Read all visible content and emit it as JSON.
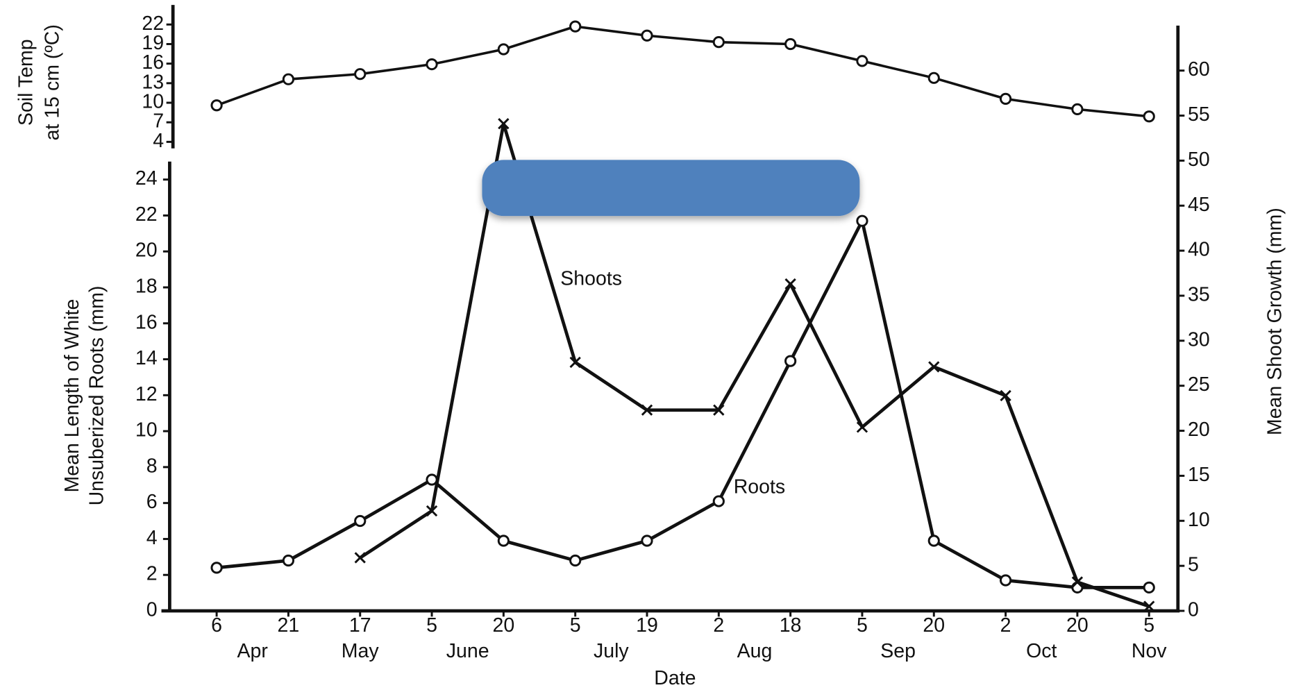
{
  "chart_data": [
    {
      "type": "line",
      "ylabel": [
        "Soil Temp",
        "at 15 cm (ºC)"
      ],
      "ylim": [
        3,
        25
      ],
      "yticks": [
        4,
        7,
        10,
        13,
        16,
        19,
        22
      ],
      "series": [
        {
          "color": "#111111",
          "marker": "circle",
          "values": [
            9.6,
            13.6,
            14.4,
            15.9,
            18.2,
            21.7,
            20.3,
            19.3,
            19.0,
            16.4,
            13.8,
            10.6,
            9.0,
            7.9
          ]
        }
      ]
    },
    {
      "type": "line",
      "xlabel": "Date",
      "ylabel": [
        "Mean Length of White",
        "Unsuberized Roots (mm)"
      ],
      "y2label": "Mean Shoot Growth (mm)",
      "categories": [
        "6",
        "21",
        "17",
        "5",
        "20",
        "5",
        "19",
        "2",
        "18",
        "5",
        "20",
        "2",
        "20",
        "5"
      ],
      "months": [
        "Apr",
        null,
        "May",
        "June",
        null,
        "July",
        null,
        "Aug",
        null,
        "Sep",
        null,
        "Oct",
        null,
        "Nov"
      ],
      "ylim": [
        0,
        25
      ],
      "yticks": [
        0,
        2,
        4,
        6,
        8,
        10,
        12,
        14,
        16,
        18,
        20,
        22,
        24
      ],
      "y2lim": [
        0,
        65
      ],
      "y2ticks": [
        0,
        5,
        10,
        15,
        20,
        25,
        30,
        35,
        40,
        45,
        50,
        55,
        60
      ],
      "series": [
        {
          "name": "Roots",
          "color": "#111111",
          "marker": "circle",
          "values": [
            2.4,
            2.8,
            5.0,
            7.3,
            3.9,
            2.8,
            3.9,
            6.1,
            13.9,
            21.7,
            3.9,
            1.7,
            1.3,
            1.3
          ]
        },
        {
          "name": "Shoots",
          "color": "#111111",
          "marker": "x",
          "axis": "y2",
          "values": [
            null,
            null,
            5.9,
            11.1,
            54.1,
            27.6,
            22.3,
            22.3,
            36.3,
            20.4,
            27.1,
            23.9,
            3.2,
            0.5
          ]
        }
      ]
    }
  ]
}
